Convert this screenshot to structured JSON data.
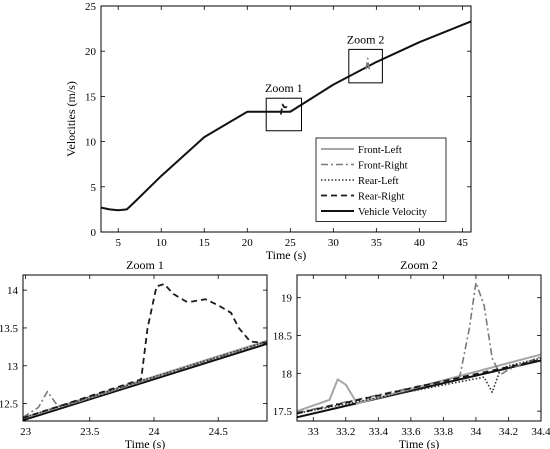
{
  "colors": {
    "front_left": "#a6a6a6",
    "front_right": "#7a7a7a",
    "rear_left": "#333333",
    "rear_right": "#1a1a1a",
    "vehicle": "#111111"
  },
  "chart_data": [
    {
      "type": "line",
      "title": "",
      "xlabel": "Time (s)",
      "ylabel": "Velocities (m/s)",
      "xlim": [
        3,
        46
      ],
      "ylim": [
        0,
        25
      ],
      "xticks": [
        5,
        10,
        15,
        20,
        25,
        30,
        35,
        40,
        45
      ],
      "yticks": [
        0,
        5,
        10,
        15,
        20,
        25
      ],
      "legend": {
        "placement": "right",
        "entries": [
          "Front-Left",
          "Front-Right",
          "Rear-Left",
          "Rear-Right",
          "Vehicle Velocity"
        ]
      },
      "annotations": [
        {
          "text": "Zoom 1",
          "box_x": [
            22.2,
            26.3
          ],
          "box_y": [
            11.2,
            14.8
          ]
        },
        {
          "text": "Zoom 2",
          "box_x": [
            31.8,
            35.7
          ],
          "box_y": [
            16.5,
            20.2
          ]
        }
      ],
      "series": [
        {
          "name": "Vehicle Velocity",
          "style": "solid",
          "x": [
            3,
            4,
            5,
            6,
            7,
            10,
            15,
            20,
            25,
            30,
            35,
            40,
            46
          ],
          "y": [
            2.7,
            2.5,
            2.4,
            2.5,
            3.4,
            6.2,
            10.5,
            13.3,
            13.3,
            16.3,
            18.8,
            21.0,
            23.3
          ]
        },
        {
          "name": "Rear-Right",
          "style": "dashed",
          "x": [
            23.9,
            24.1,
            24.3,
            24.6,
            24.9
          ],
          "y": [
            13.0,
            14.1,
            13.8,
            13.8,
            13.3
          ]
        },
        {
          "name": "Front-Right",
          "style": "dashdot",
          "x": [
            33.8,
            34.0,
            34.1,
            34.2
          ],
          "y": [
            18.0,
            19.2,
            18.3,
            18.0
          ]
        }
      ]
    },
    {
      "type": "line",
      "title": "Zoom 1",
      "xlabel": "Time (s)",
      "ylabel": "",
      "xlim": [
        22.98,
        24.88
      ],
      "ylim": [
        12.27,
        14.2
      ],
      "xticks": [
        23,
        23.5,
        24,
        24.5
      ],
      "yticks": [
        12.5,
        13,
        13.5,
        14
      ],
      "series": [
        {
          "name": "Vehicle Velocity",
          "style": "solid",
          "x": [
            22.98,
            24.88
          ],
          "y": [
            12.28,
            13.29
          ]
        },
        {
          "name": "Front-Left",
          "style": "solid",
          "x": [
            22.98,
            24.88
          ],
          "y": [
            12.31,
            13.33
          ]
        },
        {
          "name": "Front-Right",
          "style": "dashdot",
          "x": [
            22.98,
            23.1,
            23.17,
            23.25,
            23.35,
            24.88
          ],
          "y": [
            12.32,
            12.45,
            12.66,
            12.47,
            12.49,
            13.32
          ]
        },
        {
          "name": "Rear-Left",
          "style": "dotted",
          "x": [
            22.98,
            24.88
          ],
          "y": [
            12.31,
            13.32
          ]
        },
        {
          "name": "Rear-Right",
          "style": "dashed",
          "x": [
            22.98,
            23.9,
            23.95,
            24.02,
            24.08,
            24.15,
            24.25,
            24.3,
            24.4,
            24.5,
            24.6,
            24.66,
            24.75,
            24.88
          ],
          "y": [
            12.31,
            12.82,
            13.5,
            14.05,
            14.08,
            13.95,
            13.85,
            13.85,
            13.88,
            13.8,
            13.7,
            13.5,
            13.32,
            13.3
          ]
        }
      ]
    },
    {
      "type": "line",
      "title": "Zoom 2",
      "xlabel": "Time (s)",
      "ylabel": "",
      "xlim": [
        32.9,
        34.4
      ],
      "ylim": [
        17.37,
        19.3
      ],
      "xticks": [
        33,
        33.2,
        33.4,
        33.6,
        33.8,
        34,
        34.2,
        34.4
      ],
      "yticks": [
        17.5,
        18,
        18.5,
        19
      ],
      "series": [
        {
          "name": "Vehicle Velocity",
          "style": "solid",
          "x": [
            32.9,
            34.4
          ],
          "y": [
            17.42,
            18.17
          ]
        },
        {
          "name": "Front-Left",
          "style": "solid",
          "x": [
            32.9,
            33.1,
            33.15,
            33.2,
            33.27,
            33.35,
            34.4
          ],
          "y": [
            17.5,
            17.65,
            17.92,
            17.85,
            17.6,
            17.65,
            18.25
          ]
        },
        {
          "name": "Front-Right",
          "style": "dashdot",
          "x": [
            32.9,
            33.9,
            33.96,
            34.0,
            34.05,
            34.1,
            34.15,
            34.2,
            34.4
          ],
          "y": [
            17.48,
            17.95,
            18.6,
            19.2,
            18.9,
            18.2,
            17.98,
            18.05,
            18.22
          ]
        },
        {
          "name": "Rear-Left",
          "style": "dotted",
          "x": [
            32.9,
            34.05,
            34.1,
            34.15,
            34.2,
            34.3,
            34.4
          ],
          "y": [
            17.47,
            17.95,
            17.75,
            18.05,
            18.1,
            18.15,
            18.2
          ]
        },
        {
          "name": "Rear-Right",
          "style": "dashed",
          "x": [
            32.9,
            34.4
          ],
          "y": [
            17.47,
            18.18
          ]
        }
      ]
    }
  ]
}
